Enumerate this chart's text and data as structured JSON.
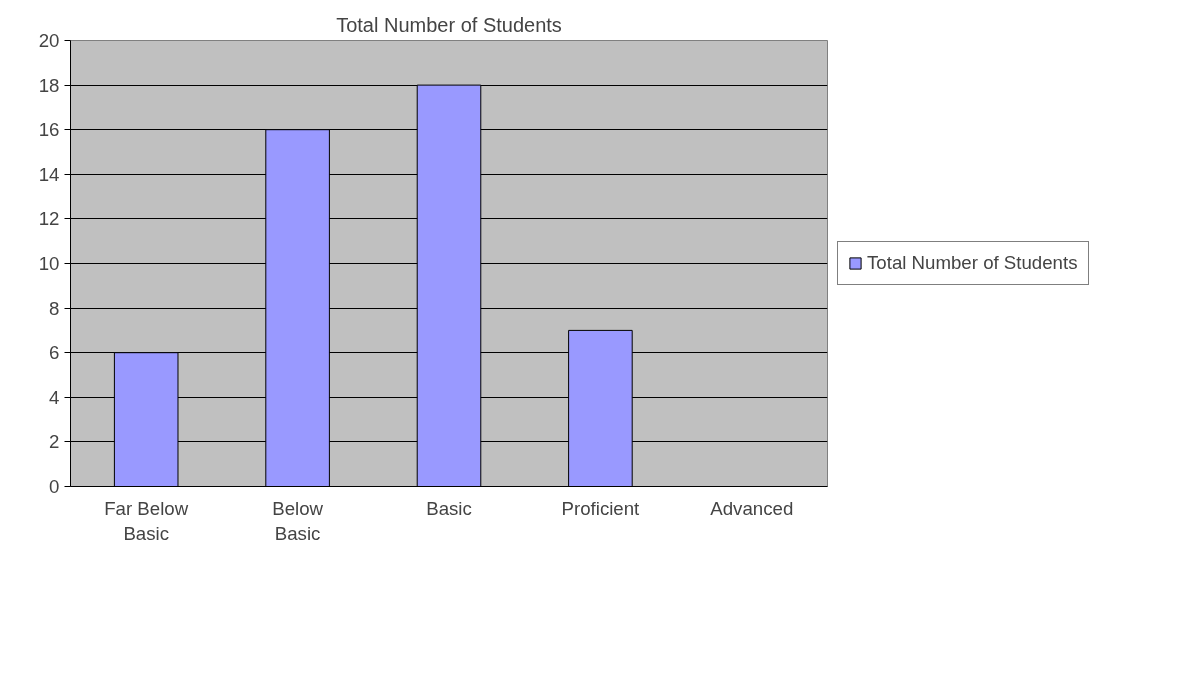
{
  "chart_data": {
    "type": "bar",
    "title": "Total Number of Students",
    "categories": [
      "Far Below Basic",
      "Below Basic",
      "Basic",
      "Proficient",
      "Advanced"
    ],
    "series": [
      {
        "name": "Total Number of Students",
        "color": "#9999ff",
        "values": [
          6,
          16,
          18,
          7,
          0
        ]
      }
    ],
    "ylim": [
      0,
      20
    ],
    "yticks": [
      0,
      2,
      4,
      6,
      8,
      10,
      12,
      14,
      16,
      18,
      20
    ],
    "grid": "y",
    "legend": "right"
  }
}
